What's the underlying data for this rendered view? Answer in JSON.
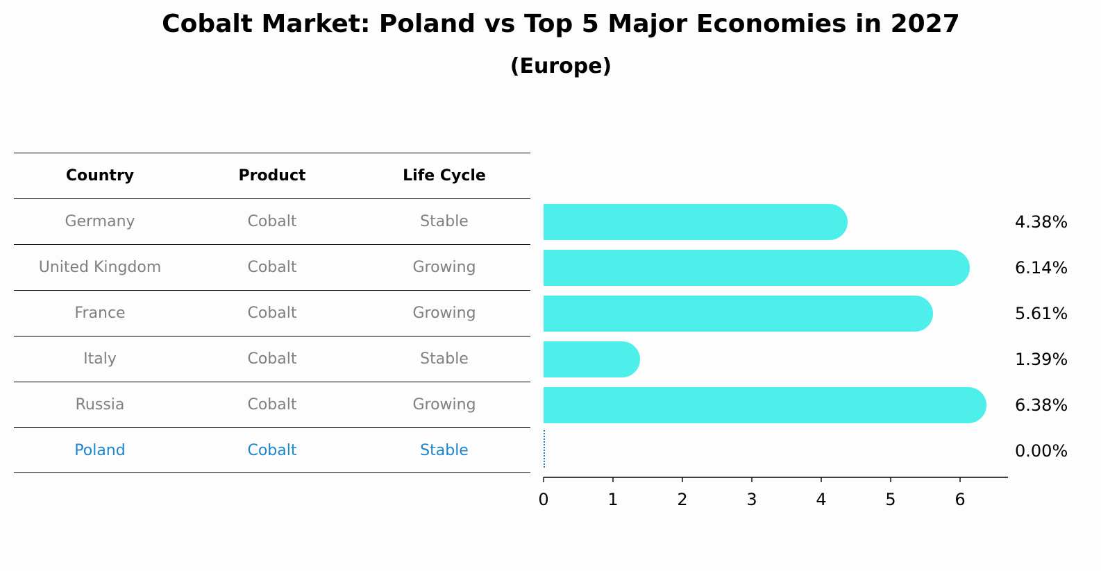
{
  "title": "Cobalt Market: Poland vs Top 5 Major Economies in 2027",
  "subtitle": "(Europe)",
  "table": {
    "headers": [
      "Country",
      "Product",
      "Life Cycle"
    ],
    "rows": [
      {
        "country": "Germany",
        "product": "Cobalt",
        "life_cycle": "Stable"
      },
      {
        "country": "United Kingdom",
        "product": "Cobalt",
        "life_cycle": "Growing"
      },
      {
        "country": "France",
        "product": "Cobalt",
        "life_cycle": "Growing"
      },
      {
        "country": "Italy",
        "product": "Cobalt",
        "life_cycle": "Stable"
      },
      {
        "country": "Russia",
        "product": "Cobalt",
        "life_cycle": "Growing"
      },
      {
        "country": "Poland",
        "product": "Cobalt",
        "life_cycle": "Stable"
      }
    ]
  },
  "colors": {
    "bar": "#4eeeea",
    "highlight": "#1c85cf",
    "muted": "#808080"
  },
  "chart_data": {
    "type": "bar",
    "orientation": "horizontal",
    "categories": [
      "Germany",
      "United Kingdom",
      "France",
      "Italy",
      "Russia",
      "Poland"
    ],
    "values": [
      4.38,
      6.14,
      5.61,
      1.39,
      6.38,
      0.0
    ],
    "value_labels": [
      "4.38%",
      "6.14%",
      "5.61%",
      "1.39%",
      "6.38%",
      "0.00%"
    ],
    "xlim": [
      0,
      6.7
    ],
    "xticks": [
      0,
      1,
      2,
      3,
      4,
      5,
      6
    ],
    "xlabel": "",
    "ylabel": "",
    "grid": false
  }
}
